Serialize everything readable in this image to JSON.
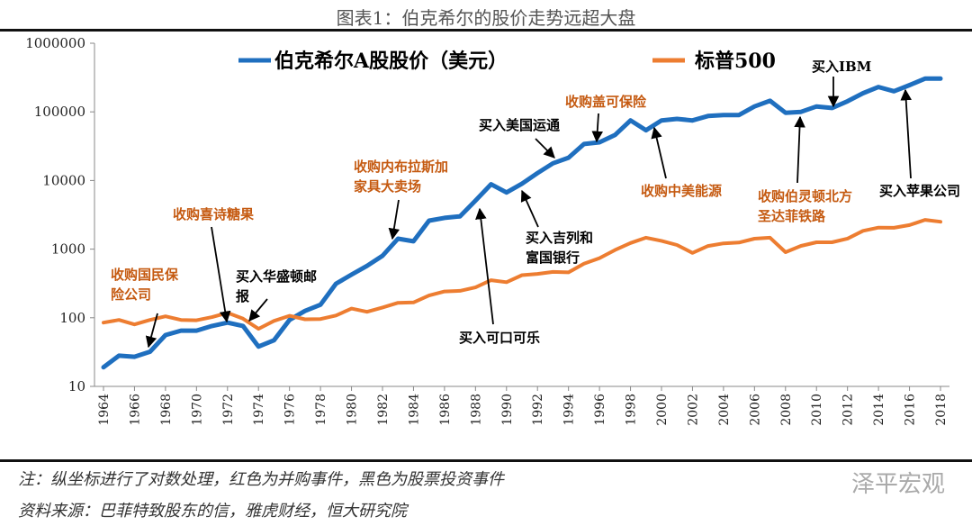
{
  "title": "图表1：伯克希尔的股价走势远超大盘",
  "footer": {
    "note": "注：纵坐标进行了对数处理，红色为并购事件，黑色为股票投资事件",
    "source": "资料来源：巴菲特致股东的信，雅虎财经，恒大研究院",
    "watermark": "泽平宏观"
  },
  "chart_data": {
    "type": "line",
    "yscale": "log",
    "ylim": [
      10,
      1000000
    ],
    "yticks": [
      "10",
      "100",
      "1000",
      "10000",
      "100000",
      "1000000"
    ],
    "xlim": [
      1964,
      2018
    ],
    "xticks": [
      "1964",
      "1966",
      "1968",
      "1970",
      "1972",
      "1974",
      "1976",
      "1978",
      "1980",
      "1982",
      "1984",
      "1986",
      "1988",
      "1990",
      "1992",
      "1994",
      "1996",
      "1998",
      "2000",
      "2002",
      "2004",
      "2006",
      "2008",
      "2010",
      "2012",
      "2014",
      "2016",
      "2018"
    ],
    "legend_position": "top",
    "grid": false,
    "x": [
      1964,
      1965,
      1966,
      1967,
      1968,
      1969,
      1970,
      1971,
      1972,
      1973,
      1974,
      1975,
      1976,
      1977,
      1978,
      1979,
      1980,
      1981,
      1982,
      1983,
      1984,
      1985,
      1986,
      1987,
      1988,
      1989,
      1990,
      1991,
      1992,
      1993,
      1994,
      1995,
      1996,
      1997,
      1998,
      1999,
      2000,
      2001,
      2002,
      2003,
      2004,
      2005,
      2006,
      2007,
      2008,
      2009,
      2010,
      2011,
      2012,
      2013,
      2014,
      2015,
      2016,
      2017,
      2018
    ],
    "series": [
      {
        "name": "伯克希尔A股股价（美元）",
        "color": "#1f6fbf",
        "values": [
          19,
          28,
          27,
          32,
          56,
          65,
          65,
          76,
          85,
          76,
          38,
          47,
          93,
          126,
          155,
          313,
          425,
          570,
          800,
          1420,
          1300,
          2600,
          2850,
          3000,
          5100,
          8800,
          6700,
          9000,
          12800,
          17800,
          21500,
          34000,
          36000,
          46000,
          75000,
          54000,
          75000,
          79000,
          75000,
          87000,
          90000,
          90000,
          120000,
          145000,
          97000,
          100000,
          120000,
          114000,
          143000,
          187000,
          230000,
          200000,
          245000,
          305000,
          305000
        ]
      },
      {
        "name": "标普500",
        "color": "#ed7d31",
        "values": [
          85,
          93,
          80,
          93,
          105,
          93,
          92,
          102,
          118,
          97,
          69,
          90,
          107,
          95,
          96,
          108,
          136,
          122,
          141,
          165,
          167,
          211,
          242,
          247,
          277,
          353,
          330,
          417,
          435,
          466,
          459,
          615,
          740,
          970,
          1229,
          1469,
          1320,
          1148,
          880,
          1112,
          1212,
          1248,
          1418,
          1468,
          903,
          1115,
          1258,
          1257,
          1426,
          1848,
          2059,
          2044,
          2239,
          2674,
          2507
        ]
      }
    ],
    "annotations": [
      {
        "lines": [
          "收购国民保",
          "险公司"
        ],
        "type": "acquisition",
        "color": "#c55a11",
        "year": 1967
      },
      {
        "lines": [
          "收购喜诗糖果"
        ],
        "type": "acquisition",
        "color": "#c55a11",
        "year": 1972
      },
      {
        "lines": [
          "买入华盛顿邮",
          "报"
        ],
        "type": "investment",
        "color": "#000000",
        "year": 1973
      },
      {
        "lines": [
          "收购内布拉斯加",
          "家具大卖场"
        ],
        "type": "acquisition",
        "color": "#c55a11",
        "year": 1983
      },
      {
        "lines": [
          "买入可口可乐"
        ],
        "type": "investment",
        "color": "#000000",
        "year": 1988
      },
      {
        "lines": [
          "买入吉列和",
          "富国银行"
        ],
        "type": "investment",
        "color": "#000000",
        "year": 1990
      },
      {
        "lines": [
          "买入美国运通"
        ],
        "type": "investment",
        "color": "#000000",
        "year": 1994
      },
      {
        "lines": [
          "收购盖可保险"
        ],
        "type": "acquisition",
        "color": "#c55a11",
        "year": 1996
      },
      {
        "lines": [
          "收购中美能源"
        ],
        "type": "acquisition",
        "color": "#c55a11",
        "year": 1999
      },
      {
        "lines": [
          "收购伯灵顿北方",
          "圣达菲铁路"
        ],
        "type": "acquisition",
        "color": "#c55a11",
        "year": 2009
      },
      {
        "lines": [
          "买入IBM"
        ],
        "type": "investment",
        "color": "#000000",
        "year": 2011
      },
      {
        "lines": [
          "买入苹果公司"
        ],
        "type": "investment",
        "color": "#000000",
        "year": 2016
      }
    ]
  }
}
